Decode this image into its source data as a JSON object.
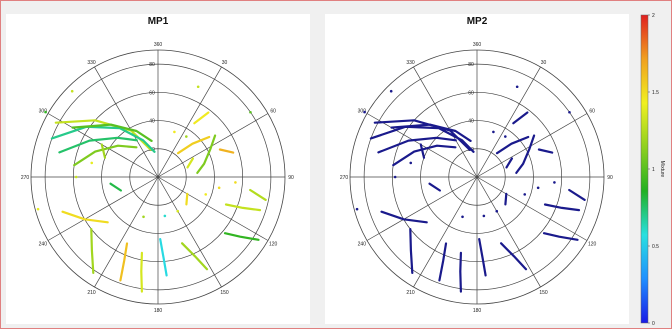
{
  "chart_data": [
    {
      "type": "scatter",
      "projection": "polar",
      "title": "MP1",
      "angle_ticks": [
        "360",
        "30",
        "60",
        "90",
        "120",
        "150",
        "180",
        "210",
        "240",
        "270",
        "300",
        "330"
      ],
      "radius_ticks": [
        "20",
        "40",
        "60",
        "80"
      ],
      "color_mode": "value",
      "tracks": [
        {
          "points": [
            [
              298,
              82
            ],
            [
              312,
              60
            ],
            [
              330,
              38
            ],
            [
              345,
              20
            ]
          ],
          "value": 1.3
        },
        {
          "points": [
            [
              290,
              80
            ],
            [
              305,
              62
            ],
            [
              322,
              44
            ],
            [
              338,
              28
            ],
            [
              352,
              18
            ]
          ],
          "value": 0.7
        },
        {
          "points": [
            [
              300,
              70
            ],
            [
              318,
              50
            ],
            [
              335,
              36
            ],
            [
              350,
              26
            ]
          ],
          "value": 1.0
        },
        {
          "points": [
            [
              284,
              72
            ],
            [
              298,
              55
            ],
            [
              314,
              40
            ],
            [
              330,
              30
            ]
          ],
          "value": 0.75
        },
        {
          "points": [
            [
              278,
              60
            ],
            [
              292,
              48
            ],
            [
              308,
              36
            ],
            [
              324,
              26
            ]
          ],
          "value": 1.1
        },
        {
          "points": [
            [
              250,
              72
            ],
            [
              240,
              60
            ],
            [
              228,
              48
            ]
          ],
          "value": 1.5
        },
        {
          "points": [
            [
              232,
              60
            ],
            [
              222,
              70
            ],
            [
              214,
              82
            ]
          ],
          "value": 1.2
        },
        {
          "points": [
            [
              205,
              52
            ],
            [
              202,
              64
            ],
            [
              200,
              78
            ]
          ],
          "value": 1.6
        },
        {
          "points": [
            [
              192,
              55
            ],
            [
              190,
              68
            ],
            [
              188,
              82
            ]
          ],
          "value": 1.35
        },
        {
          "points": [
            [
              178,
              44
            ],
            [
              176,
              58
            ],
            [
              175,
              70
            ]
          ],
          "value": 0.55
        },
        {
          "points": [
            [
              160,
              50
            ],
            [
              155,
              62
            ],
            [
              152,
              74
            ]
          ],
          "value": 1.2
        },
        {
          "points": [
            [
              130,
              62
            ],
            [
              126,
              72
            ],
            [
              122,
              84
            ]
          ],
          "value": 0.9
        },
        {
          "points": [
            [
              112,
              52
            ],
            [
              110,
              64
            ],
            [
              108,
              76
            ]
          ],
          "value": 1.3
        },
        {
          "points": [
            [
              98,
              66
            ],
            [
              102,
              78
            ]
          ],
          "value": 1.25
        },
        {
          "points": [
            [
              84,
              28
            ],
            [
              74,
              34
            ],
            [
              62,
              42
            ],
            [
              54,
              50
            ]
          ],
          "value": 1.1
        },
        {
          "points": [
            [
              66,
              48
            ],
            [
              72,
              56
            ]
          ],
          "value": 1.65
        },
        {
          "points": [
            [
              40,
              22
            ],
            [
              46,
              34
            ],
            [
              52,
              46
            ]
          ],
          "value": 1.55
        },
        {
          "points": [
            [
              72,
              22
            ],
            [
              62,
              28
            ]
          ],
          "value": 1.35
        },
        {
          "points": [
            [
              34,
              46
            ],
            [
              38,
              58
            ]
          ],
          "value": 1.45
        },
        {
          "points": [
            [
              250,
              28
            ],
            [
              262,
              34
            ]
          ],
          "value": 0.8
        },
        {
          "points": [
            [
              290,
              40
            ],
            [
              300,
              46
            ]
          ],
          "value": 1.2
        },
        {
          "points": [
            [
              120,
              24
            ],
            [
              134,
              28
            ]
          ],
          "value": 1.5
        }
      ],
      "dots": [
        {
          "point": [
            270,
            58
          ],
          "value": 1.3
        },
        {
          "point": [
            282,
            48
          ],
          "value": 1.4
        },
        {
          "point": [
            300,
            92
          ],
          "value": 0.9
        },
        {
          "point": [
            24,
            70
          ],
          "value": 1.3
        },
        {
          "point": [
            55,
            80
          ],
          "value": 1.0
        },
        {
          "point": [
            100,
            44
          ],
          "value": 1.5
        },
        {
          "point": [
            110,
            36
          ],
          "value": 1.45
        },
        {
          "point": [
            150,
            28
          ],
          "value": 1.35
        },
        {
          "point": [
            170,
            28
          ],
          "value": 0.6
        },
        {
          "point": [
            200,
            30
          ],
          "value": 1.2
        },
        {
          "point": [
            20,
            34
          ],
          "value": 1.45
        },
        {
          "point": [
            35,
            35
          ],
          "value": 1.2
        },
        {
          "point": [
            94,
            55
          ],
          "value": 1.5
        },
        {
          "point": [
            255,
            88
          ],
          "value": 1.4
        },
        {
          "point": [
            315,
            86
          ],
          "value": 1.3
        }
      ]
    },
    {
      "type": "scatter",
      "projection": "polar",
      "title": "MP2",
      "angle_ticks": [
        "360",
        "30",
        "60",
        "90",
        "120",
        "150",
        "180",
        "210",
        "240",
        "270",
        "300",
        "330"
      ],
      "radius_ticks": [
        "20",
        "40",
        "60",
        "80"
      ],
      "color_mode": "value",
      "tracks": [
        {
          "points": [
            [
              298,
              82
            ],
            [
              312,
              60
            ],
            [
              330,
              38
            ],
            [
              345,
              20
            ]
          ],
          "value": 0.0
        },
        {
          "points": [
            [
              290,
              80
            ],
            [
              305,
              62
            ],
            [
              322,
              44
            ],
            [
              338,
              28
            ],
            [
              352,
              18
            ]
          ],
          "value": 0.0
        },
        {
          "points": [
            [
              300,
              70
            ],
            [
              318,
              50
            ],
            [
              335,
              36
            ],
            [
              350,
              26
            ]
          ],
          "value": 0.0
        },
        {
          "points": [
            [
              284,
              72
            ],
            [
              298,
              55
            ],
            [
              314,
              40
            ],
            [
              330,
              30
            ]
          ],
          "value": 0.0
        },
        {
          "points": [
            [
              278,
              60
            ],
            [
              292,
              48
            ],
            [
              308,
              36
            ],
            [
              324,
              26
            ]
          ],
          "value": 0.0
        },
        {
          "points": [
            [
              250,
              72
            ],
            [
              240,
              60
            ],
            [
              228,
              48
            ]
          ],
          "value": 0.0
        },
        {
          "points": [
            [
              232,
              60
            ],
            [
              222,
              70
            ],
            [
              214,
              82
            ]
          ],
          "value": 0.0
        },
        {
          "points": [
            [
              205,
              52
            ],
            [
              202,
              64
            ],
            [
              200,
              78
            ]
          ],
          "value": 0.0
        },
        {
          "points": [
            [
              192,
              55
            ],
            [
              190,
              68
            ],
            [
              188,
              82
            ]
          ],
          "value": 0.0
        },
        {
          "points": [
            [
              178,
              44
            ],
            [
              176,
              58
            ],
            [
              175,
              70
            ]
          ],
          "value": 0.0
        },
        {
          "points": [
            [
              160,
              50
            ],
            [
              155,
              62
            ],
            [
              152,
              74
            ]
          ],
          "value": 0.0
        },
        {
          "points": [
            [
              130,
              62
            ],
            [
              126,
              72
            ],
            [
              122,
              84
            ]
          ],
          "value": 0.0
        },
        {
          "points": [
            [
              112,
              52
            ],
            [
              110,
              64
            ],
            [
              108,
              76
            ]
          ],
          "value": 0.0
        },
        {
          "points": [
            [
              98,
              66
            ],
            [
              102,
              78
            ]
          ],
          "value": 0.0
        },
        {
          "points": [
            [
              84,
              28
            ],
            [
              74,
              34
            ],
            [
              62,
              42
            ],
            [
              54,
              50
            ]
          ],
          "value": 0.0
        },
        {
          "points": [
            [
              66,
              48
            ],
            [
              72,
              56
            ]
          ],
          "value": 0.0
        },
        {
          "points": [
            [
              40,
              22
            ],
            [
              46,
              34
            ],
            [
              52,
              46
            ]
          ],
          "value": 0.0
        },
        {
          "points": [
            [
              72,
              22
            ],
            [
              62,
              28
            ]
          ],
          "value": 0.0
        },
        {
          "points": [
            [
              34,
              46
            ],
            [
              38,
              58
            ]
          ],
          "value": 0.0
        },
        {
          "points": [
            [
              250,
              28
            ],
            [
              262,
              34
            ]
          ],
          "value": 0.0
        },
        {
          "points": [
            [
              290,
              40
            ],
            [
              300,
              46
            ]
          ],
          "value": 0.0
        },
        {
          "points": [
            [
              120,
              24
            ],
            [
              134,
              28
            ]
          ],
          "value": 0.0
        }
      ],
      "dots": [
        {
          "point": [
            270,
            58
          ],
          "value": 0.0
        },
        {
          "point": [
            282,
            48
          ],
          "value": 0.0
        },
        {
          "point": [
            300,
            92
          ],
          "value": 0.0
        },
        {
          "point": [
            24,
            70
          ],
          "value": 0.0
        },
        {
          "point": [
            55,
            80
          ],
          "value": 0.0
        },
        {
          "point": [
            100,
            44
          ],
          "value": 0.0
        },
        {
          "point": [
            110,
            36
          ],
          "value": 0.0
        },
        {
          "point": [
            150,
            28
          ],
          "value": 0.0
        },
        {
          "point": [
            170,
            28
          ],
          "value": 0.0
        },
        {
          "point": [
            200,
            30
          ],
          "value": 0.0
        },
        {
          "point": [
            20,
            34
          ],
          "value": 0.0
        },
        {
          "point": [
            35,
            35
          ],
          "value": 0.0
        },
        {
          "point": [
            94,
            55
          ],
          "value": 0.0
        },
        {
          "point": [
            255,
            88
          ],
          "value": 0.0
        },
        {
          "point": [
            315,
            86
          ],
          "value": 0.0
        }
      ]
    }
  ],
  "colorbar": {
    "label": "Mixture",
    "ticks": [
      "0",
      "0.5",
      "1",
      "1.5",
      "2"
    ],
    "range": [
      0,
      2
    ],
    "colors": [
      "#1a1ae6",
      "#1f8fff",
      "#29e0e0",
      "#22b022",
      "#8fd01f",
      "#f0f020",
      "#f0a020",
      "#e02020"
    ]
  }
}
